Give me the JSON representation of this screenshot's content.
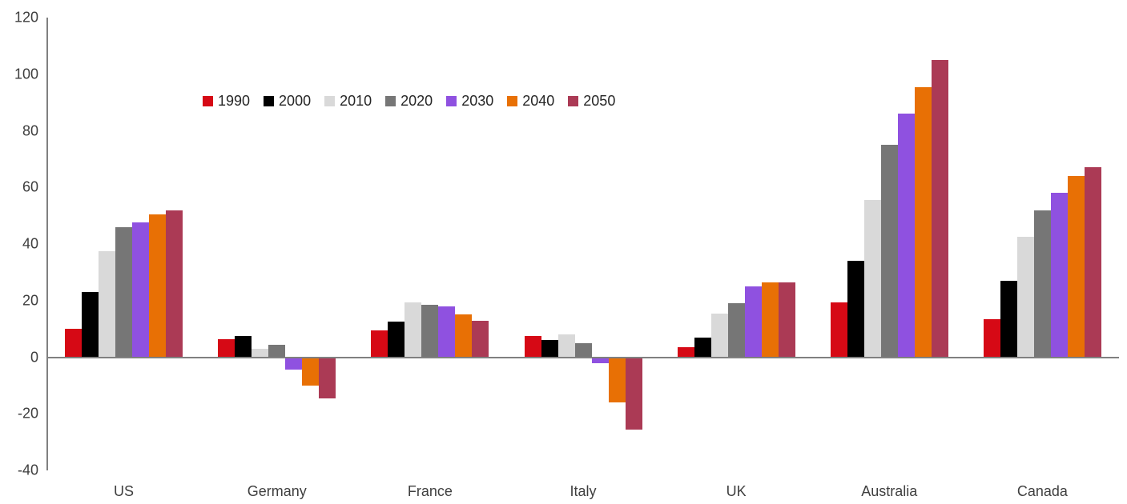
{
  "chart_data": {
    "type": "bar",
    "title": "",
    "categories": [
      "US",
      "Germany",
      "France",
      "Italy",
      "UK",
      "Australia",
      "Canada"
    ],
    "series": [
      {
        "name": "1990",
        "color": "#d60915",
        "values": [
          10,
          6.5,
          9.5,
          7.5,
          3.5,
          19.5,
          13.5
        ]
      },
      {
        "name": "2000",
        "color": "#000000",
        "values": [
          23,
          7.5,
          12.5,
          6,
          7,
          34,
          27
        ]
      },
      {
        "name": "2010",
        "color": "#d9d9d9",
        "values": [
          37.5,
          3,
          19.5,
          8,
          15.5,
          55.5,
          42.5
        ]
      },
      {
        "name": "2020",
        "color": "#767676",
        "values": [
          46,
          4.5,
          18.5,
          5,
          19,
          75,
          52
        ]
      },
      {
        "name": "2030",
        "color": "#8f51e0",
        "values": [
          47.5,
          -4.5,
          18,
          -2,
          25,
          86,
          58
        ]
      },
      {
        "name": "2040",
        "color": "#e87005",
        "values": [
          50.5,
          -10,
          15,
          -16,
          26.5,
          95.5,
          64
        ]
      },
      {
        "name": "2050",
        "color": "#ab3a55",
        "values": [
          52,
          -14.5,
          13,
          -25.5,
          26.5,
          105,
          67
        ]
      }
    ],
    "ylim": [
      -40,
      120
    ],
    "yticks": [
      120,
      100,
      80,
      60,
      40,
      20,
      0,
      -20,
      -40
    ],
    "xlabel": "",
    "ylabel": "",
    "grid": false,
    "legend_position": "inside-top-left",
    "legend_labels": [
      "1990",
      "2000",
      "2010",
      "2020",
      "2030",
      "2040",
      "2050"
    ],
    "axis_color": "#808080",
    "background_color": "#ffffff"
  }
}
